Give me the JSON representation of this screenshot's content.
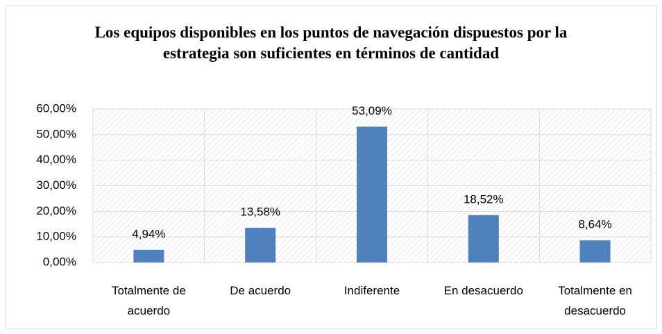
{
  "chart_data": {
    "type": "bar",
    "title": "Los equipos disponibles en los puntos de navegación dispuestos por la estrategia son suficientes en términos de cantidad",
    "categories": [
      "Totalmente de acuerdo",
      "De acuerdo",
      "Indiferente",
      "En desacuerdo",
      "Totalmente en desacuerdo"
    ],
    "values": [
      4.94,
      13.58,
      53.09,
      18.52,
      8.64
    ],
    "value_labels": [
      "4,94%",
      "13,58%",
      "53,09%",
      "18,52%",
      "8,64%"
    ],
    "color": "#4f81bd",
    "ylim": [
      0,
      60
    ],
    "yticks": [
      {
        "value": 0,
        "label": "0,00%"
      },
      {
        "value": 10,
        "label": "10,00%"
      },
      {
        "value": 20,
        "label": "20,00%"
      },
      {
        "value": 30,
        "label": "30,00%"
      },
      {
        "value": 40,
        "label": "40,00%"
      },
      {
        "value": 50,
        "label": "50,00%"
      },
      {
        "value": 60,
        "label": "60,00%"
      }
    ],
    "grid": true
  }
}
